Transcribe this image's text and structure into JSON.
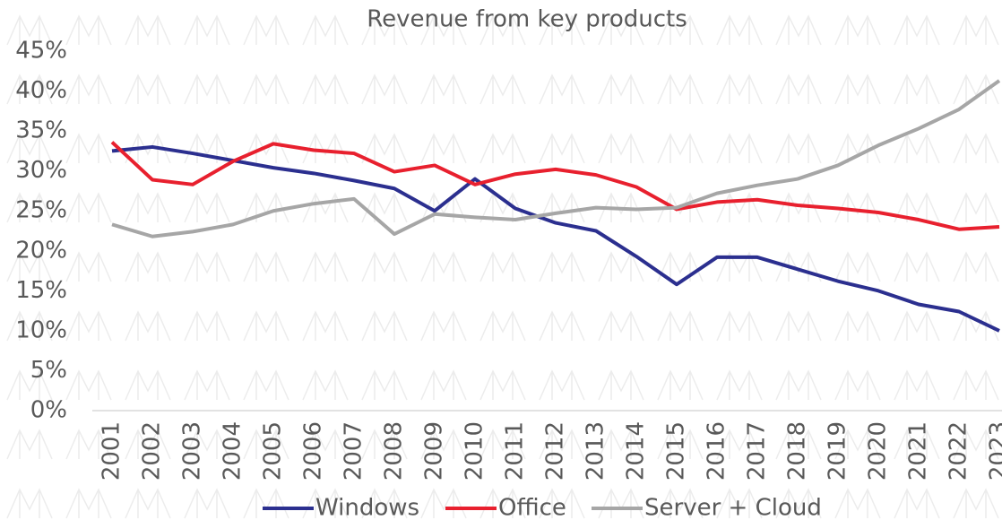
{
  "chart_data": {
    "type": "line",
    "title": "Revenue from key products",
    "categories": [
      "2001",
      "2002",
      "2003",
      "2004",
      "2005",
      "2006",
      "2007",
      "2008",
      "2009",
      "2010",
      "2011",
      "2012",
      "2013",
      "2014",
      "2015",
      "2016",
      "2017",
      "2018",
      "2019",
      "2020",
      "2021",
      "2022",
      "2023"
    ],
    "series": [
      {
        "name": "Windows",
        "color": "#2b2f8f",
        "values": [
          32.5,
          33,
          32.2,
          31.3,
          30.4,
          29.7,
          28.8,
          27.8,
          25,
          29,
          25.3,
          23.5,
          22.5,
          19.3,
          15.8,
          19.2,
          19.2,
          17.7,
          16.2,
          15,
          13.3,
          12.4,
          10
        ]
      },
      {
        "name": "Office",
        "color": "#e8202e",
        "values": [
          33.6,
          28.9,
          28.3,
          31.2,
          33.4,
          32.6,
          32.2,
          29.9,
          30.7,
          28.3,
          29.6,
          30.2,
          29.5,
          28,
          25.2,
          26.1,
          26.4,
          25.7,
          25.3,
          24.8,
          23.9,
          22.7,
          23
        ]
      },
      {
        "name": "Server + Cloud",
        "color": "#a6a6a6",
        "values": [
          23.3,
          21.8,
          22.4,
          23.3,
          25,
          25.9,
          26.5,
          22.1,
          24.6,
          24.2,
          23.9,
          24.7,
          25.4,
          25.2,
          25.4,
          27.2,
          28.2,
          29,
          30.7,
          33.2,
          35.3,
          37.7,
          41.3
        ]
      }
    ],
    "ylim": [
      0,
      45
    ],
    "yticks": [
      {
        "value": 0,
        "label": "0%"
      },
      {
        "value": 5,
        "label": "5%"
      },
      {
        "value": 10,
        "label": "10%"
      },
      {
        "value": 15,
        "label": "15%"
      },
      {
        "value": 20,
        "label": "20%"
      },
      {
        "value": 25,
        "label": "25%"
      },
      {
        "value": 30,
        "label": "30%"
      },
      {
        "value": 35,
        "label": "35%"
      },
      {
        "value": 40,
        "label": "40%"
      },
      {
        "value": 45,
        "label": "45%"
      }
    ],
    "grid": false,
    "legend": "bottom"
  }
}
